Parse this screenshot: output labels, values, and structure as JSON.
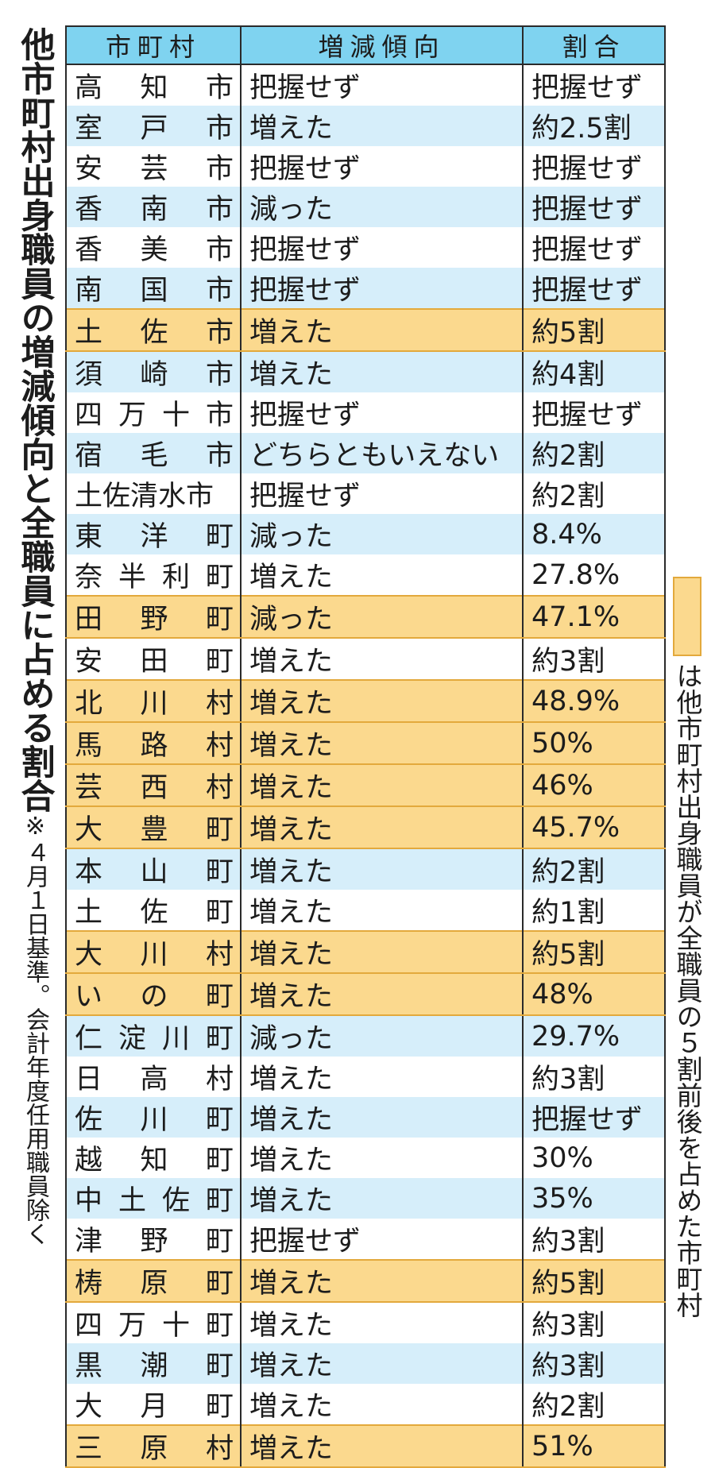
{
  "title": "他市町村出身職員の増減傾向と全職員に占める割合",
  "note": "※４月１日基準。会計年度任用職員除く",
  "headers": [
    "市町村",
    "増減傾向",
    "割合"
  ],
  "legend_text": "は他市町村出身職員が全職員の５割前後を占めた市町村",
  "highlight_color": "#fbd98e",
  "rows": [
    {
      "name": "高知市",
      "trend": "把握せず",
      "ratio": "把握せず",
      "style": "w"
    },
    {
      "name": "室戸市",
      "trend": "増えた",
      "ratio": "約2.5割",
      "style": "b"
    },
    {
      "name": "安芸市",
      "trend": "把握せず",
      "ratio": "把握せず",
      "style": "w"
    },
    {
      "name": "香南市",
      "trend": "減った",
      "ratio": "把握せず",
      "style": "b"
    },
    {
      "name": "香美市",
      "trend": "把握せず",
      "ratio": "把握せず",
      "style": "w"
    },
    {
      "name": "南国市",
      "trend": "把握せず",
      "ratio": "把握せず",
      "style": "b"
    },
    {
      "name": "土佐市",
      "trend": "増えた",
      "ratio": "約5割",
      "style": "y"
    },
    {
      "name": "須崎市",
      "trend": "増えた",
      "ratio": "約4割",
      "style": "b"
    },
    {
      "name": "四万十市",
      "trend": "把握せず",
      "ratio": "把握せず",
      "style": "w"
    },
    {
      "name": "宿毛市",
      "trend": "どちらともいえない",
      "ratio": "約2割",
      "style": "b"
    },
    {
      "name": "土佐清水市",
      "trend": "把握せず",
      "ratio": "約2割",
      "style": "w"
    },
    {
      "name": "東洋町",
      "trend": "減った",
      "ratio": "8.4%",
      "style": "b"
    },
    {
      "name": "奈半利町",
      "trend": "増えた",
      "ratio": "27.8%",
      "style": "w"
    },
    {
      "name": "田野町",
      "trend": "減った",
      "ratio": "47.1%",
      "style": "y"
    },
    {
      "name": "安田町",
      "trend": "増えた",
      "ratio": "約3割",
      "style": "w"
    },
    {
      "name": "北川村",
      "trend": "増えた",
      "ratio": "48.9%",
      "style": "y"
    },
    {
      "name": "馬路村",
      "trend": "増えた",
      "ratio": "50%",
      "style": "y"
    },
    {
      "name": "芸西村",
      "trend": "増えた",
      "ratio": "46%",
      "style": "y"
    },
    {
      "name": "大豊町",
      "trend": "増えた",
      "ratio": "45.7%",
      "style": "y"
    },
    {
      "name": "本山町",
      "trend": "増えた",
      "ratio": "約2割",
      "style": "b"
    },
    {
      "name": "土佐町",
      "trend": "増えた",
      "ratio": "約1割",
      "style": "w"
    },
    {
      "name": "大川村",
      "trend": "増えた",
      "ratio": "約5割",
      "style": "y"
    },
    {
      "name": "いの町",
      "trend": "増えた",
      "ratio": "48%",
      "style": "y"
    },
    {
      "name": "仁淀川町",
      "trend": "減った",
      "ratio": "29.7%",
      "style": "b"
    },
    {
      "name": "日高村",
      "trend": "増えた",
      "ratio": "約3割",
      "style": "w"
    },
    {
      "name": "佐川町",
      "trend": "増えた",
      "ratio": "把握せず",
      "style": "b"
    },
    {
      "name": "越知町",
      "trend": "増えた",
      "ratio": "30%",
      "style": "w"
    },
    {
      "name": "中土佐町",
      "trend": "増えた",
      "ratio": "35%",
      "style": "b"
    },
    {
      "name": "津野町",
      "trend": "把握せず",
      "ratio": "約3割",
      "style": "w"
    },
    {
      "name": "梼原町",
      "trend": "増えた",
      "ratio": "約5割",
      "style": "y"
    },
    {
      "name": "四万十町",
      "trend": "増えた",
      "ratio": "約3割",
      "style": "w"
    },
    {
      "name": "黒潮町",
      "trend": "増えた",
      "ratio": "約3割",
      "style": "b"
    },
    {
      "name": "大月町",
      "trend": "増えた",
      "ratio": "約2割",
      "style": "w"
    },
    {
      "name": "三原村",
      "trend": "増えた",
      "ratio": "51%",
      "style": "y"
    }
  ]
}
